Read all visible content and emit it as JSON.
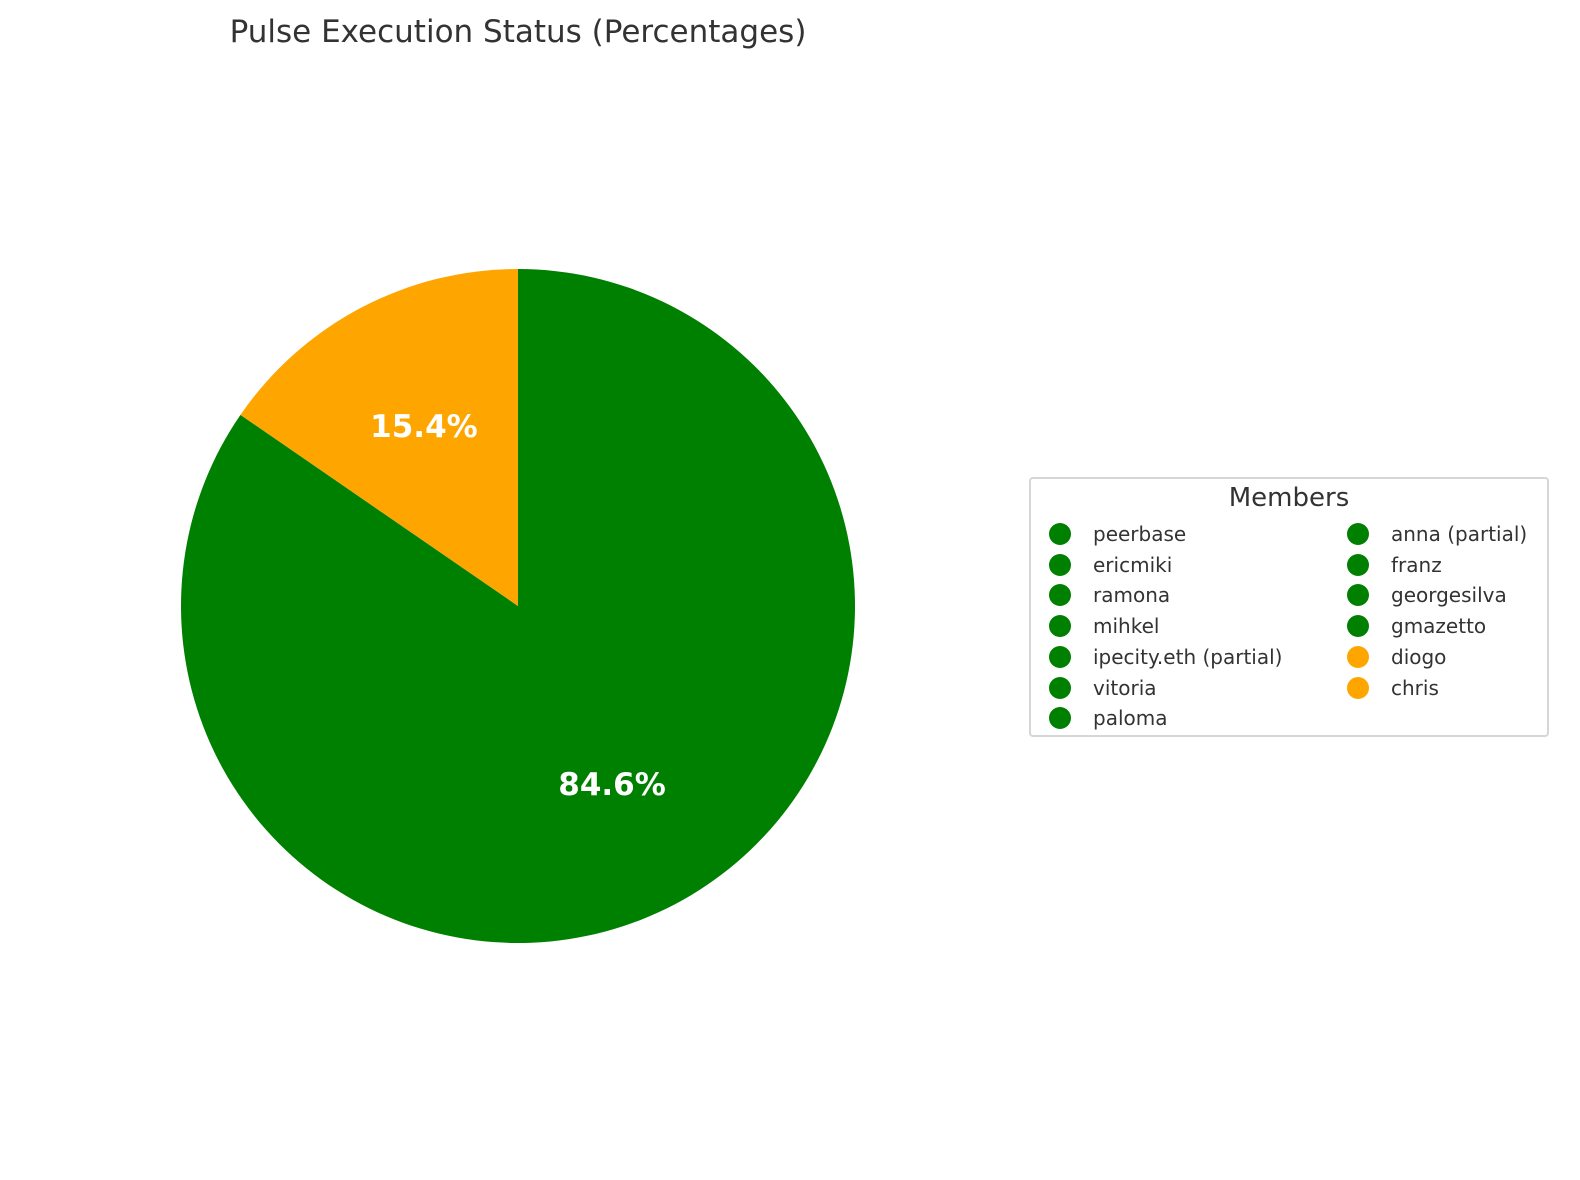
{
  "chart_data": {
    "type": "pie",
    "title": "Pulse Execution Status (Percentages)",
    "slices": [
      {
        "label": "84.6%",
        "value": 84.6,
        "color": "#008000"
      },
      {
        "label": "15.4%",
        "value": 15.4,
        "color": "#ffa500"
      }
    ],
    "start_angle": "top, clockwise",
    "legend": {
      "title": "Members",
      "placement": "right",
      "columns": 2,
      "entries": [
        {
          "name": "peerbase",
          "color": "#008000"
        },
        {
          "name": "ericmiki",
          "color": "#008000"
        },
        {
          "name": "ramona",
          "color": "#008000"
        },
        {
          "name": "mihkel",
          "color": "#008000"
        },
        {
          "name": "ipecity.eth (partial)",
          "color": "#008000"
        },
        {
          "name": "vitoria",
          "color": "#008000"
        },
        {
          "name": "paloma",
          "color": "#008000"
        },
        {
          "name": "anna (partial)",
          "color": "#008000"
        },
        {
          "name": "franz",
          "color": "#008000"
        },
        {
          "name": "georgesilva",
          "color": "#008000"
        },
        {
          "name": "gmazetto",
          "color": "#008000"
        },
        {
          "name": "diogo",
          "color": "#ffa500"
        },
        {
          "name": "chris",
          "color": "#ffa500"
        }
      ]
    }
  }
}
